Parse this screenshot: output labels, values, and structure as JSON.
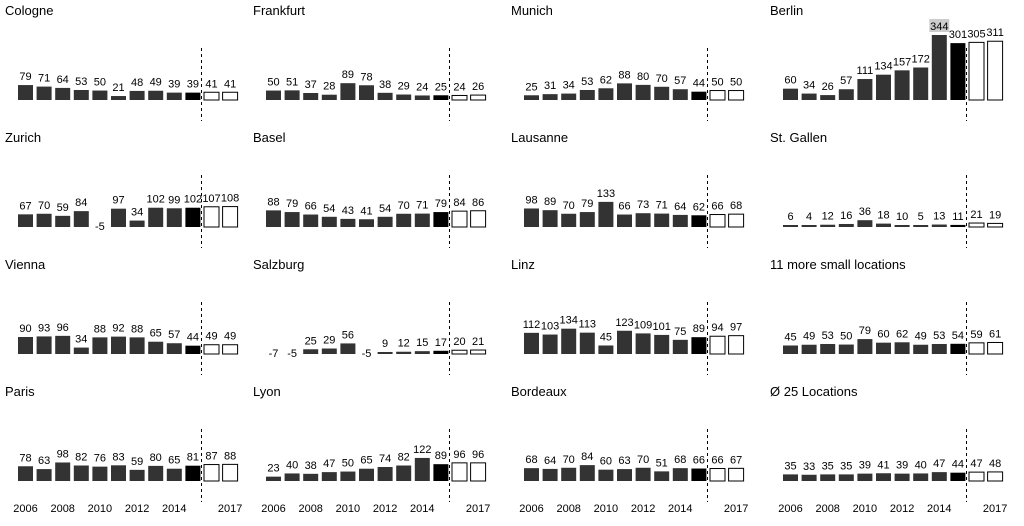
{
  "colors": {
    "bar_past": "#333333",
    "bar_current": "#000000",
    "bar_forecast_fill": "#ffffff",
    "bar_forecast_stroke": "#000000",
    "label_highlight_bg": "#cccccc",
    "text": "#000000",
    "divider": "#000000"
  },
  "x_tick_labels": [
    "2006",
    "2008",
    "2010",
    "2012",
    "2014",
    "2017"
  ],
  "chart_data": [
    {
      "type": "bar",
      "title": "Cologne",
      "categories": [
        "2006",
        "2007",
        "2008",
        "2009",
        "2010",
        "2011",
        "2012",
        "2013",
        "2014",
        "2015",
        "2016",
        "2017"
      ],
      "values": [
        79,
        71,
        64,
        53,
        50,
        21,
        48,
        49,
        39,
        39,
        41,
        41
      ],
      "current_index": 9,
      "forecast_from_index": 10
    },
    {
      "type": "bar",
      "title": "Frankfurt",
      "categories": [
        "2006",
        "2007",
        "2008",
        "2009",
        "2010",
        "2011",
        "2012",
        "2013",
        "2014",
        "2015",
        "2016",
        "2017"
      ],
      "values": [
        50,
        51,
        37,
        28,
        89,
        78,
        38,
        29,
        24,
        25,
        24,
        26
      ],
      "current_index": 9,
      "forecast_from_index": 10
    },
    {
      "type": "bar",
      "title": "Munich",
      "categories": [
        "2006",
        "2007",
        "2008",
        "2009",
        "2010",
        "2011",
        "2012",
        "2013",
        "2014",
        "2015",
        "2016",
        "2017"
      ],
      "values": [
        25,
        31,
        34,
        53,
        62,
        88,
        80,
        70,
        57,
        44,
        50,
        50
      ],
      "current_index": 9,
      "forecast_from_index": 10
    },
    {
      "type": "bar",
      "title": "Berlin",
      "categories": [
        "2006",
        "2007",
        "2008",
        "2009",
        "2010",
        "2011",
        "2012",
        "2013",
        "2014",
        "2015",
        "2016",
        "2017"
      ],
      "values": [
        60,
        34,
        26,
        57,
        111,
        134,
        157,
        172,
        344,
        301,
        305,
        311
      ],
      "current_index": 9,
      "forecast_from_index": 10,
      "highlight_label_index": 8
    },
    {
      "type": "bar",
      "title": "Zurich",
      "categories": [
        "2006",
        "2007",
        "2008",
        "2009",
        "2010",
        "2011",
        "2012",
        "2013",
        "2014",
        "2015",
        "2016",
        "2017"
      ],
      "values": [
        67,
        70,
        59,
        84,
        -5,
        97,
        34,
        102,
        99,
        102,
        107,
        108
      ],
      "current_index": 9,
      "forecast_from_index": 10
    },
    {
      "type": "bar",
      "title": "Basel",
      "categories": [
        "2006",
        "2007",
        "2008",
        "2009",
        "2010",
        "2011",
        "2012",
        "2013",
        "2014",
        "2015",
        "2016",
        "2017"
      ],
      "values": [
        88,
        79,
        66,
        54,
        43,
        41,
        54,
        70,
        71,
        79,
        84,
        86
      ],
      "current_index": 9,
      "forecast_from_index": 10
    },
    {
      "type": "bar",
      "title": "Lausanne",
      "categories": [
        "2006",
        "2007",
        "2008",
        "2009",
        "2010",
        "2011",
        "2012",
        "2013",
        "2014",
        "2015",
        "2016",
        "2017"
      ],
      "values": [
        98,
        89,
        70,
        79,
        133,
        66,
        73,
        71,
        64,
        62,
        66,
        68
      ],
      "current_index": 9,
      "forecast_from_index": 10
    },
    {
      "type": "bar",
      "title": "St. Gallen",
      "categories": [
        "2006",
        "2007",
        "2008",
        "2009",
        "2010",
        "2011",
        "2012",
        "2013",
        "2014",
        "2015",
        "2016",
        "2017"
      ],
      "values": [
        6,
        4,
        12,
        16,
        36,
        18,
        10,
        5,
        13,
        11,
        21,
        19
      ],
      "current_index": 9,
      "forecast_from_index": 10
    },
    {
      "type": "bar",
      "title": "Vienna",
      "categories": [
        "2006",
        "2007",
        "2008",
        "2009",
        "2010",
        "2011",
        "2012",
        "2013",
        "2014",
        "2015",
        "2016",
        "2017"
      ],
      "values": [
        90,
        93,
        96,
        34,
        88,
        92,
        88,
        65,
        57,
        44,
        49,
        49
      ],
      "current_index": 9,
      "forecast_from_index": 10
    },
    {
      "type": "bar",
      "title": "Salzburg",
      "categories": [
        "2006",
        "2007",
        "2008",
        "2009",
        "2010",
        "2011",
        "2012",
        "2013",
        "2014",
        "2015",
        "2016",
        "2017"
      ],
      "values": [
        -7,
        -5,
        25,
        29,
        56,
        -5,
        9,
        12,
        15,
        17,
        20,
        21
      ],
      "current_index": 9,
      "forecast_from_index": 10
    },
    {
      "type": "bar",
      "title": "Linz",
      "categories": [
        "2006",
        "2007",
        "2008",
        "2009",
        "2010",
        "2011",
        "2012",
        "2013",
        "2014",
        "2015",
        "2016",
        "2017"
      ],
      "values": [
        112,
        103,
        134,
        113,
        45,
        123,
        109,
        101,
        75,
        89,
        94,
        97
      ],
      "current_index": 9,
      "forecast_from_index": 10
    },
    {
      "type": "bar",
      "title": "11 more small locations",
      "categories": [
        "2006",
        "2007",
        "2008",
        "2009",
        "2010",
        "2011",
        "2012",
        "2013",
        "2014",
        "2015",
        "2016",
        "2017"
      ],
      "values": [
        45,
        49,
        53,
        50,
        79,
        60,
        62,
        49,
        53,
        54,
        59,
        61
      ],
      "current_index": 9,
      "forecast_from_index": 10
    },
    {
      "type": "bar",
      "title": "Paris",
      "categories": [
        "2006",
        "2007",
        "2008",
        "2009",
        "2010",
        "2011",
        "2012",
        "2013",
        "2014",
        "2015",
        "2016",
        "2017"
      ],
      "values": [
        78,
        63,
        98,
        82,
        76,
        83,
        59,
        80,
        65,
        81,
        87,
        88
      ],
      "current_index": 9,
      "forecast_from_index": 10
    },
    {
      "type": "bar",
      "title": "Lyon",
      "categories": [
        "2006",
        "2007",
        "2008",
        "2009",
        "2010",
        "2011",
        "2012",
        "2013",
        "2014",
        "2015",
        "2016",
        "2017"
      ],
      "values": [
        23,
        40,
        38,
        47,
        50,
        65,
        74,
        82,
        122,
        89,
        96,
        96
      ],
      "current_index": 9,
      "forecast_from_index": 10
    },
    {
      "type": "bar",
      "title": "Bordeaux",
      "categories": [
        "2006",
        "2007",
        "2008",
        "2009",
        "2010",
        "2011",
        "2012",
        "2013",
        "2014",
        "2015",
        "2016",
        "2017"
      ],
      "values": [
        68,
        64,
        70,
        84,
        60,
        63,
        70,
        51,
        68,
        66,
        66,
        67
      ],
      "current_index": 9,
      "forecast_from_index": 10
    },
    {
      "type": "bar",
      "title": "Ø 25 Locations",
      "categories": [
        "2006",
        "2007",
        "2008",
        "2009",
        "2010",
        "2011",
        "2012",
        "2013",
        "2014",
        "2015",
        "2016",
        "2017"
      ],
      "values": [
        35,
        33,
        35,
        35,
        39,
        41,
        39,
        40,
        47,
        44,
        47,
        48
      ],
      "current_index": 9,
      "forecast_from_index": 10
    }
  ]
}
